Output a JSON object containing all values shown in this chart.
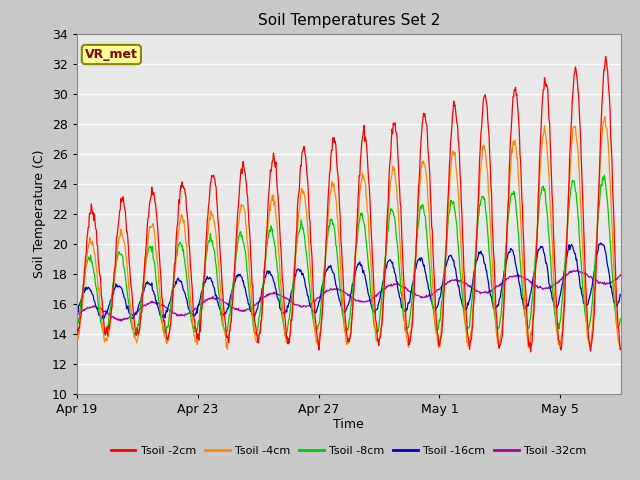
{
  "title": "Soil Temperatures Set 2",
  "xlabel": "Time",
  "ylabel": "Soil Temperature (C)",
  "ylim": [
    10,
    34
  ],
  "yticks": [
    10,
    12,
    14,
    16,
    18,
    20,
    22,
    24,
    26,
    28,
    30,
    32,
    34
  ],
  "fig_bg_color": "#c8c8c8",
  "plot_bg_color": "#e8e8e8",
  "annotation_text": "VR_met",
  "annotation_bg": "#ffff99",
  "annotation_border": "#888800",
  "annotation_text_color": "#880000",
  "line_colors": {
    "2cm": "#ff0000",
    "4cm": "#ff8800",
    "8cm": "#00cc00",
    "16cm": "#0000cc",
    "32cm": "#aa00aa"
  },
  "legend_labels": [
    "Tsoil -2cm",
    "Tsoil -4cm",
    "Tsoil -8cm",
    "Tsoil -16cm",
    "Tsoil -32cm"
  ],
  "x_tick_labels": [
    "Apr 19",
    "Apr 23",
    "Apr 27",
    "May 1",
    "May 5"
  ],
  "x_tick_positions": [
    0,
    4,
    8,
    12,
    16
  ],
  "n_days": 18,
  "samples_per_day": 48
}
